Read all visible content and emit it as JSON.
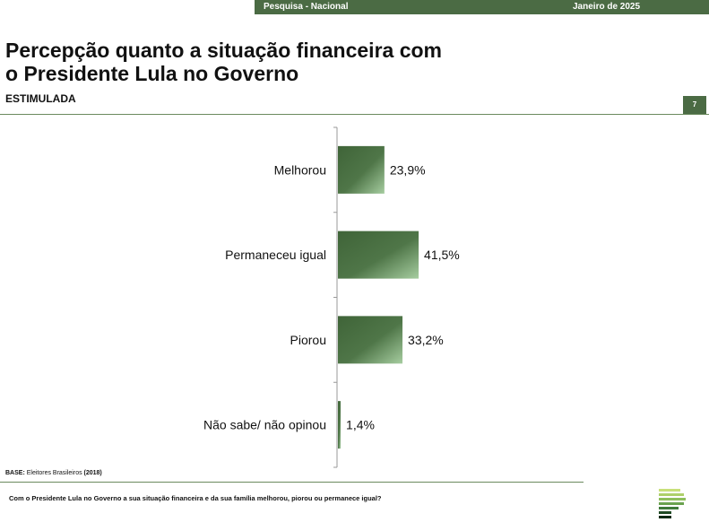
{
  "header": {
    "survey": "Pesquisa - Nacional",
    "date": "Janeiro de 2025",
    "page_number": "7"
  },
  "title_line1": "Percepção quanto a situação financeira com",
  "title_line2": "o Presidente Lula no Governo",
  "subtitle": "ESTIMULADA",
  "base": {
    "label": "BASE:",
    "text": " Eleitores Brasileiros ",
    "year": "(2018)"
  },
  "question": "Com o Presidente Lula no Governo a sua situação financeira e da sua família melhorou, piorou ou permanece igual?",
  "colors": {
    "brand": "#4b6b44",
    "bar_dark": "#3f6438",
    "bar_light": "#9fc79a"
  },
  "chart_data": {
    "type": "bar",
    "orientation": "horizontal",
    "categories": [
      "Melhorou",
      "Permaneceu igual",
      "Piorou",
      "Não sabe/ não opinou"
    ],
    "values": [
      23.9,
      41.5,
      33.2,
      1.4
    ],
    "value_labels": [
      "23,9%",
      "41,5%",
      "33,2%",
      "1,4%"
    ],
    "unit": "%",
    "grid": false,
    "legend": "none"
  }
}
